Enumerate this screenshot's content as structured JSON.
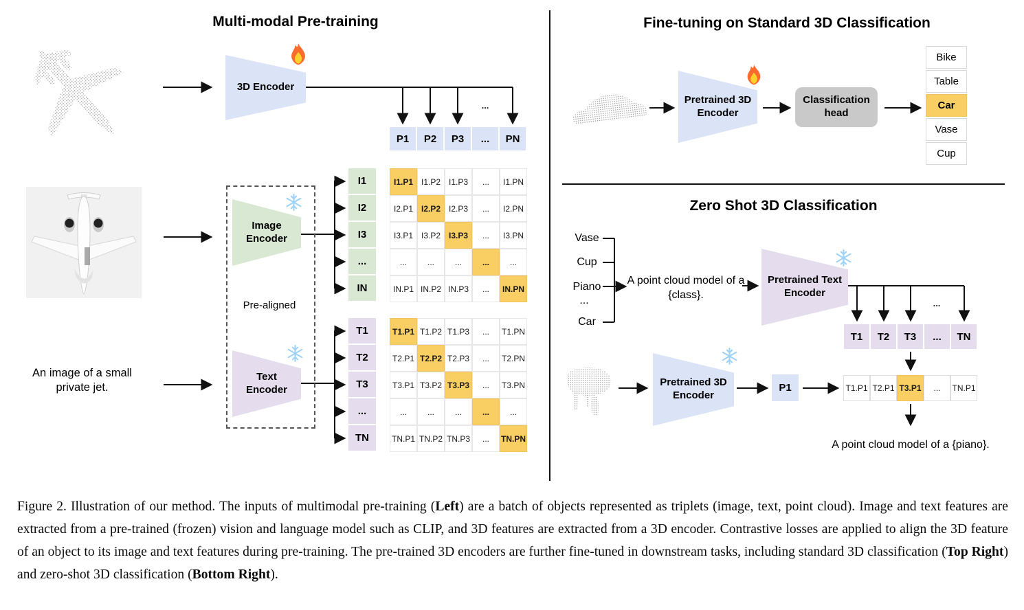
{
  "colors": {
    "blue": "#dbe4f6",
    "green": "#d9e8d3",
    "purple": "#e5dcee",
    "orange_highlight": "#f9cf63",
    "gray_head": "#c9c9c9",
    "arrow": "#111111"
  },
  "icons": {
    "trainable": "fire-icon",
    "frozen": "snowflake-icon"
  },
  "pretraining": {
    "title": "Multi-modal Pre-training",
    "encoder_3d": "3D Encoder",
    "image_encoder": "Image Encoder",
    "text_encoder": "Text Encoder",
    "pre_aligned": "Pre-aligned",
    "image_caption": "An image of a small private jet.",
    "ellipsis": "...",
    "p_row": [
      "P1",
      "P2",
      "P3",
      "...",
      "PN"
    ],
    "i_col": [
      "I1",
      "I2",
      "I3",
      "...",
      "IN"
    ],
    "t_col": [
      "T1",
      "T2",
      "T3",
      "...",
      "TN"
    ],
    "image_matrix": [
      [
        "I1.P1",
        "I1.P2",
        "I1.P3",
        "...",
        "I1.PN"
      ],
      [
        "I2.P1",
        "I2.P2",
        "I2.P3",
        "...",
        "I2.PN"
      ],
      [
        "I3.P1",
        "I3.P2",
        "I3.P3",
        "...",
        "I3.PN"
      ],
      [
        "...",
        "...",
        "...",
        "...",
        "..."
      ],
      [
        "IN.P1",
        "IN.P2",
        "IN.P3",
        "...",
        "IN.PN"
      ]
    ],
    "text_matrix": [
      [
        "T1.P1",
        "T1.P2",
        "T1.P3",
        "...",
        "T1.PN"
      ],
      [
        "T2.P1",
        "T2.P2",
        "T2.P3",
        "...",
        "T2.PN"
      ],
      [
        "T3.P1",
        "T3.P2",
        "T3.P3",
        "...",
        "T3.PN"
      ],
      [
        "...",
        "...",
        "...",
        "...",
        "..."
      ],
      [
        "TN.P1",
        "TN.P2",
        "TN.P3",
        "...",
        "TN.PN"
      ]
    ]
  },
  "finetuning": {
    "title": "Fine-tuning on Standard 3D Classification",
    "encoder": "Pretrained 3D Encoder",
    "head": "Classification head",
    "classes": [
      "Bike",
      "Table",
      "Car",
      "Vase",
      "Cup"
    ],
    "highlight": "Car"
  },
  "zeroshot": {
    "title": "Zero Shot 3D Classification",
    "classes": [
      "Vase",
      "Cup",
      "Piano",
      "...",
      "Car"
    ],
    "prompt": "A point cloud model of a {class}.",
    "text_encoder": "Pretrained Text Encoder",
    "encoder_3d": "Pretrained 3D Encoder",
    "p1": "P1",
    "ellipsis": "...",
    "t_row": [
      "T1",
      "T2",
      "T3",
      "...",
      "TN"
    ],
    "sim_row": [
      "T1.P1",
      "T2.P1",
      "T3.P1",
      "...",
      "TN.P1"
    ],
    "sim_highlight_index": 2,
    "result": "A point cloud model of a {piano}."
  },
  "caption": {
    "segments": [
      {
        "text": "Figure 2. Illustration of our method. The inputs of multimodal pre-training (",
        "bold": false
      },
      {
        "text": "Left",
        "bold": true
      },
      {
        "text": ") are a batch of objects represented as triplets (image, text, point cloud). Image and text features are extracted from a pre-trained (frozen) vision and language model such as CLIP, and 3D features are extracted from a 3D encoder. Contrastive losses are applied to align the 3D feature of an object to its image and text features during pre-training. The pre-trained 3D encoders are further fine-tuned in downstream tasks, including standard 3D classification (",
        "bold": false
      },
      {
        "text": "Top Right",
        "bold": true
      },
      {
        "text": ") and zero-shot 3D classification (",
        "bold": false
      },
      {
        "text": "Bottom Right",
        "bold": true
      },
      {
        "text": ").",
        "bold": false
      }
    ]
  }
}
